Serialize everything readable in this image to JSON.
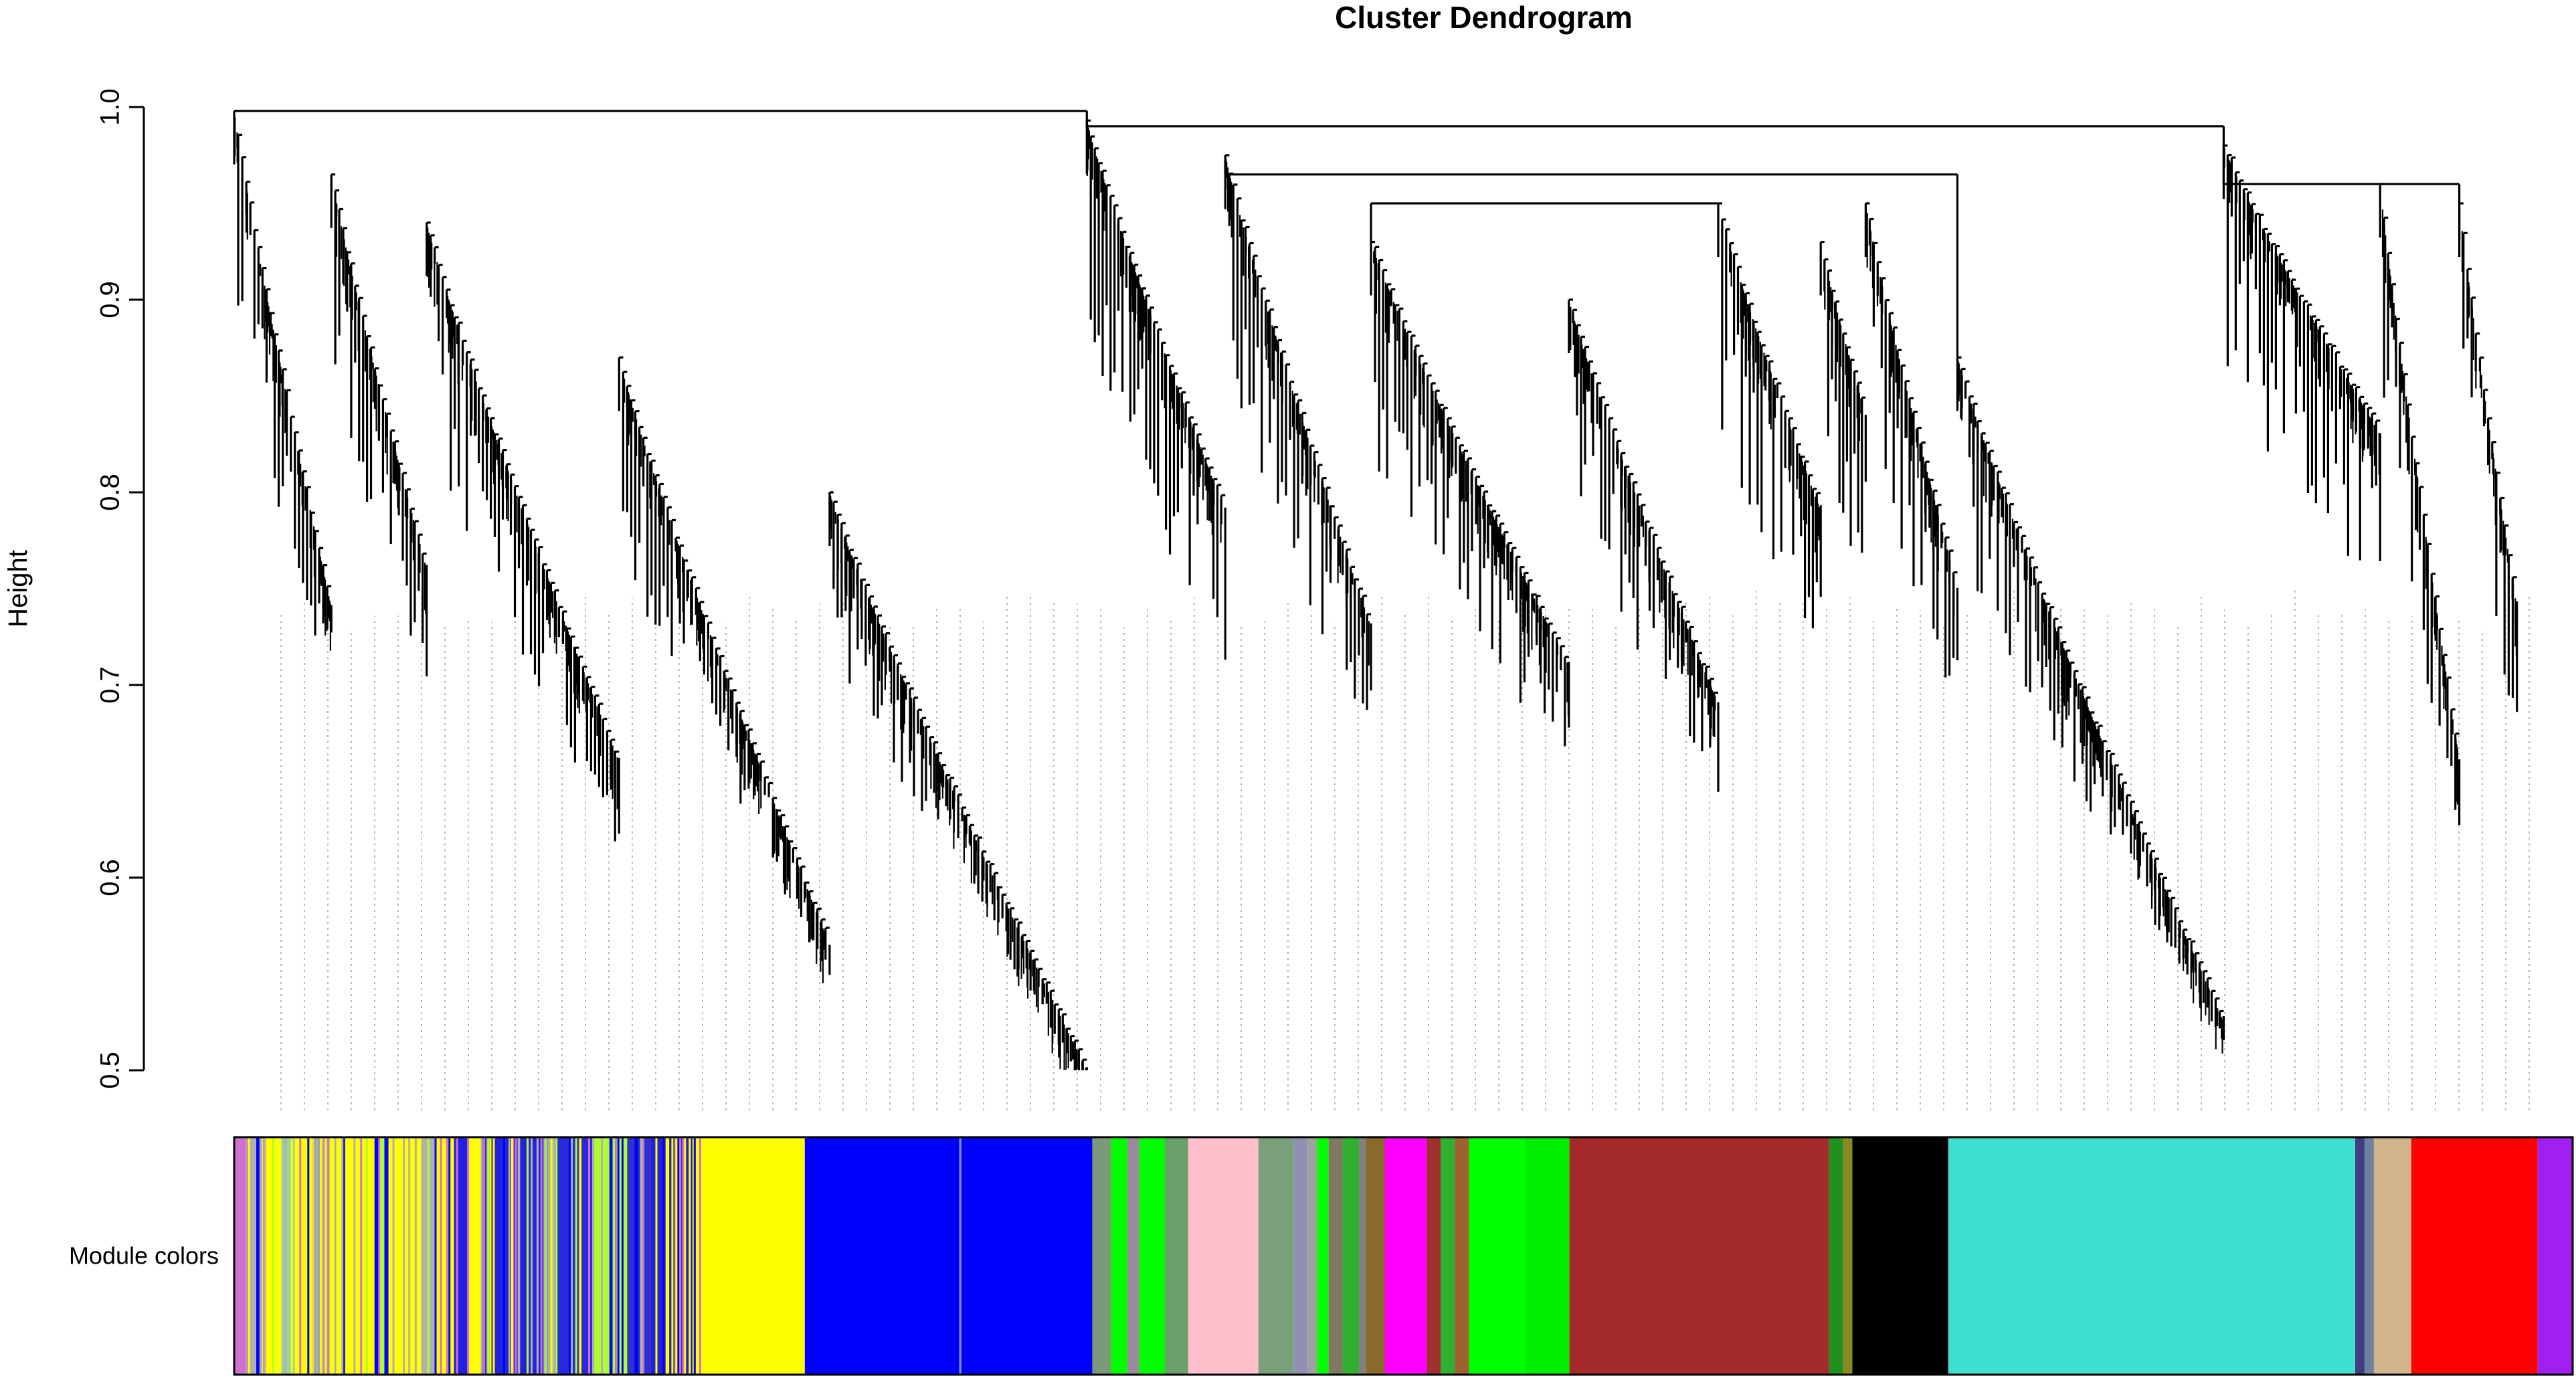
{
  "chart_data": {
    "type": "dendrogram",
    "title": "Cluster Dendrogram",
    "ylabel": "Height",
    "ylim": [
      0.5,
      1.0
    ],
    "yticks": [
      0.5,
      0.6,
      0.7,
      0.8,
      0.9,
      1.0
    ],
    "grid": false,
    "color_band_label": "Module colors",
    "clusters": [
      {
        "leaf_range": [
          0.0,
          0.054
        ],
        "top": 0.998,
        "bottom": 0.74
      },
      {
        "leaf_range": [
          0.054,
          0.107
        ],
        "top": 0.965,
        "bottom": 0.76
      },
      {
        "leaf_range": [
          0.107,
          0.214
        ],
        "top": 0.94,
        "bottom": 0.66
      },
      {
        "leaf_range": [
          0.214,
          0.331
        ],
        "top": 0.87,
        "bottom": 0.565
      },
      {
        "leaf_range": [
          0.331,
          0.474
        ],
        "top": 0.8,
        "bottom": 0.5
      },
      {
        "leaf_range": [
          0.474,
          0.551
        ],
        "top": 0.993,
        "bottom": 0.79
      },
      {
        "leaf_range": [
          0.551,
          0.632
        ],
        "top": 0.975,
        "bottom": 0.73
      },
      {
        "leaf_range": [
          0.632,
          0.742
        ],
        "top": 0.93,
        "bottom": 0.71
      },
      {
        "leaf_range": [
          0.742,
          0.825
        ],
        "top": 0.9,
        "bottom": 0.69
      },
      {
        "leaf_range": [
          0.825,
          0.882
        ],
        "top": 0.95,
        "bottom": 0.79
      },
      {
        "leaf_range": [
          0.882,
          0.907
        ],
        "top": 0.93,
        "bottom": 0.84
      },
      {
        "leaf_range": [
          0.907,
          0.958
        ],
        "top": 0.95,
        "bottom": 0.75
      },
      {
        "leaf_range": [
          0.958,
          1.106
        ],
        "top": 0.87,
        "bottom": 0.525
      },
      {
        "leaf_range": [
          1.106,
          1.193
        ],
        "top": 0.98,
        "bottom": 0.83
      },
      {
        "leaf_range": [
          1.193,
          1.237
        ],
        "top": 0.96,
        "bottom": 0.66
      },
      {
        "leaf_range": [
          1.237,
          1.269
        ],
        "top": 0.95,
        "bottom": 0.74
      }
    ],
    "module_colors": [
      {
        "color": "#d070d0",
        "from": 0.0,
        "to": 0.005
      },
      {
        "color": "#b0b0b0",
        "from": 0.005,
        "to": 0.012
      },
      {
        "color": "#ffff00",
        "from": 0.012,
        "to": 0.02
      },
      {
        "color": "#a0d0a0",
        "from": 0.02,
        "to": 0.026
      },
      {
        "color": "#ffff00",
        "from": 0.026,
        "to": 0.034
      },
      {
        "color": "#a8a8a8",
        "from": 0.034,
        "to": 0.04
      },
      {
        "color": "#ffff00",
        "from": 0.04,
        "to": 0.06
      },
      {
        "color": "#0000ff",
        "from": 0.06,
        "to": 0.066
      },
      {
        "color": "#ffff00",
        "from": 0.066,
        "to": 0.08
      },
      {
        "color": "#b0b0b0",
        "from": 0.08,
        "to": 0.086
      },
      {
        "color": "#ffff00",
        "from": 0.086,
        "to": 0.094
      },
      {
        "color": "#2020e0",
        "from": 0.094,
        "to": 0.1
      },
      {
        "color": "#ffff00",
        "from": 0.1,
        "to": 0.106
      },
      {
        "color": "#2222dd",
        "from": 0.106,
        "to": 0.134
      },
      {
        "color": "#b0b0b0",
        "from": 0.134,
        "to": 0.138
      },
      {
        "color": "#2828dd",
        "from": 0.138,
        "to": 0.154
      },
      {
        "color": "#adff2f",
        "from": 0.154,
        "to": 0.168
      },
      {
        "color": "#3030cc",
        "from": 0.168,
        "to": 0.178
      },
      {
        "color": "#2020dd",
        "from": 0.178,
        "to": 0.196
      },
      {
        "color": "#ffff00",
        "from": 0.196,
        "to": 0.244
      },
      {
        "color": "#0000ff",
        "from": 0.244,
        "to": 0.31
      },
      {
        "color": "#8888ee",
        "from": 0.31,
        "to": 0.311
      },
      {
        "color": "#0000ff",
        "from": 0.311,
        "to": 0.367
      },
      {
        "color": "#7a9a7a",
        "from": 0.367,
        "to": 0.375
      },
      {
        "color": "#00ff00",
        "from": 0.375,
        "to": 0.382
      },
      {
        "color": "#9a8a9a",
        "from": 0.382,
        "to": 0.387
      },
      {
        "color": "#00ff00",
        "from": 0.387,
        "to": 0.398
      },
      {
        "color": "#6aa06a",
        "from": 0.398,
        "to": 0.408
      },
      {
        "color": "#ffc0cb",
        "from": 0.408,
        "to": 0.438
      },
      {
        "color": "#7aa07a",
        "from": 0.438,
        "to": 0.453
      },
      {
        "color": "#9090b0",
        "from": 0.453,
        "to": 0.459
      },
      {
        "color": "#a0a0a0",
        "from": 0.459,
        "to": 0.463
      },
      {
        "color": "#00ff00",
        "from": 0.463,
        "to": 0.468
      },
      {
        "color": "#807860",
        "from": 0.468,
        "to": 0.474
      },
      {
        "color": "#30b030",
        "from": 0.474,
        "to": 0.481
      },
      {
        "color": "#808080",
        "from": 0.481,
        "to": 0.484
      },
      {
        "color": "#8a6a2a",
        "from": 0.484,
        "to": 0.492
      },
      {
        "color": "#ff00ff",
        "from": 0.492,
        "to": 0.51
      },
      {
        "color": "#a03030",
        "from": 0.51,
        "to": 0.516
      },
      {
        "color": "#30b030",
        "from": 0.516,
        "to": 0.522
      },
      {
        "color": "#a06030",
        "from": 0.522,
        "to": 0.528
      },
      {
        "color": "#00ff00",
        "from": 0.528,
        "to": 0.552
      },
      {
        "color": "#00ee00",
        "from": 0.552,
        "to": 0.571
      },
      {
        "color": "#a52a2a",
        "from": 0.571,
        "to": 0.682
      },
      {
        "color": "#1f8f1f",
        "from": 0.682,
        "to": 0.688
      },
      {
        "color": "#8a8a20",
        "from": 0.688,
        "to": 0.692
      },
      {
        "color": "#000000",
        "from": 0.692,
        "to": 0.733
      },
      {
        "color": "#40e0d0",
        "from": 0.733,
        "to": 0.907
      },
      {
        "color": "#404080",
        "from": 0.907,
        "to": 0.911
      },
      {
        "color": "#7080a0",
        "from": 0.911,
        "to": 0.915
      },
      {
        "color": "#d2b48c",
        "from": 0.915,
        "to": 0.931
      },
      {
        "color": "#ff0000",
        "from": 0.931,
        "to": 0.985
      },
      {
        "color": "#a020f0",
        "from": 0.985,
        "to": 1.0
      }
    ]
  }
}
